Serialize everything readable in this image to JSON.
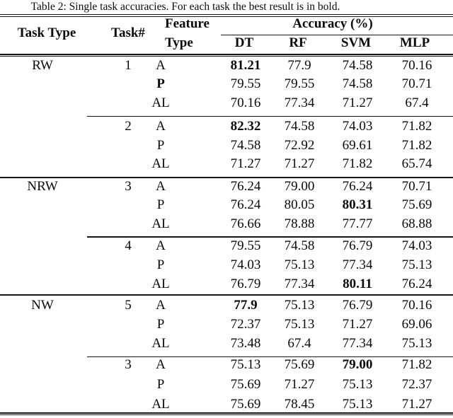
{
  "caption": "Table 2: Single task accuracies. For each task the best result is in bold.",
  "header": {
    "task_type": "Task Type",
    "task_num": "Task#",
    "feature_line1": "Feature",
    "feature_line2": "Type",
    "accuracy_group": "Accuracy (%)",
    "methods": [
      "DT",
      "RF",
      "SVM",
      "MLP"
    ]
  },
  "rows": [
    {
      "task_type": "RW",
      "task_num": "1",
      "feature": "A",
      "dt": "81.21",
      "rf": "77.9",
      "svm": "74.58",
      "mlp": "70.16",
      "bold": [
        "dt"
      ]
    },
    {
      "feature": "P",
      "dt": "79.55",
      "rf": "79.55",
      "svm": "74.58",
      "mlp": "70.71",
      "bold": [
        "feature"
      ]
    },
    {
      "feature": "AL",
      "dt": "70.16",
      "rf": "77.34",
      "svm": "71.27",
      "mlp": "67.4",
      "bold": []
    },
    {
      "task_num": "2",
      "feature": "A",
      "dt": "82.32",
      "rf": "74.58",
      "svm": "74.03",
      "mlp": "71.82",
      "bold": [
        "dt"
      ]
    },
    {
      "feature": "P",
      "dt": "74.58",
      "rf": "72.92",
      "svm": "69.61",
      "mlp": "71.82",
      "bold": []
    },
    {
      "feature": "AL",
      "dt": "71.27",
      "rf": "71.27",
      "svm": "71.82",
      "mlp": "65.74",
      "bold": []
    },
    {
      "task_type": "NRW",
      "task_num": "3",
      "feature": "A",
      "dt": "76.24",
      "rf": "79.00",
      "svm": "76.24",
      "mlp": "70.71",
      "bold": []
    },
    {
      "feature": "P",
      "dt": "76.24",
      "rf": "80.05",
      "svm": "80.31",
      "mlp": "75.69",
      "bold": [
        "svm"
      ]
    },
    {
      "feature": "AL",
      "dt": "76.66",
      "rf": "78.88",
      "svm": "77.77",
      "mlp": "68.88",
      "bold": []
    },
    {
      "task_num": "4",
      "feature": "A",
      "dt": "79.55",
      "rf": "74.58",
      "svm": "76.79",
      "mlp": "74.03",
      "bold": []
    },
    {
      "feature": "P",
      "dt": "74.03",
      "rf": "75.13",
      "svm": "77.34",
      "mlp": "75.13",
      "bold": []
    },
    {
      "feature": "AL",
      "dt": "76.79",
      "rf": "77.34",
      "svm": "80.11",
      "mlp": "76.24",
      "bold": [
        "svm"
      ]
    },
    {
      "task_type": "NW",
      "task_num": "5",
      "feature": "A",
      "dt": "77.9",
      "rf": "75.13",
      "svm": "76.79",
      "mlp": "70.16",
      "bold": [
        "dt"
      ]
    },
    {
      "feature": "P",
      "dt": "72.37",
      "rf": "75.13",
      "svm": "71.27",
      "mlp": "69.06",
      "bold": []
    },
    {
      "feature": "AL",
      "dt": "73.48",
      "rf": "67.4",
      "svm": "77.34",
      "mlp": "75.13",
      "bold": []
    },
    {
      "task_num": "3",
      "feature": "A",
      "dt": "75.13",
      "rf": "75.69",
      "svm": "79.00",
      "mlp": "71.82",
      "bold": [
        "svm"
      ]
    },
    {
      "feature": "P",
      "dt": "75.69",
      "rf": "71.27",
      "svm": "75.13",
      "mlp": "72.37",
      "bold": []
    },
    {
      "feature": "AL",
      "dt": "75.69",
      "rf": "78.45",
      "svm": "75.13",
      "mlp": "71.27",
      "bold": []
    }
  ]
}
